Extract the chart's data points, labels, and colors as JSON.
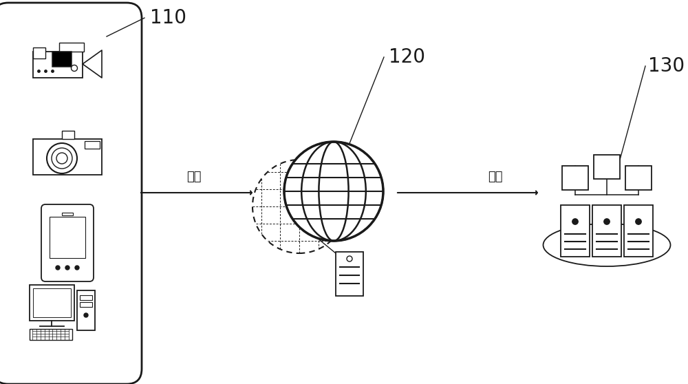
{
  "bg_color": "#ffffff",
  "line_color": "#1a1a1a",
  "label_110": "110",
  "label_120": "120",
  "label_130": "130",
  "text_request": "请求",
  "text_response": "响应",
  "fig_width": 10.0,
  "fig_height": 5.58
}
